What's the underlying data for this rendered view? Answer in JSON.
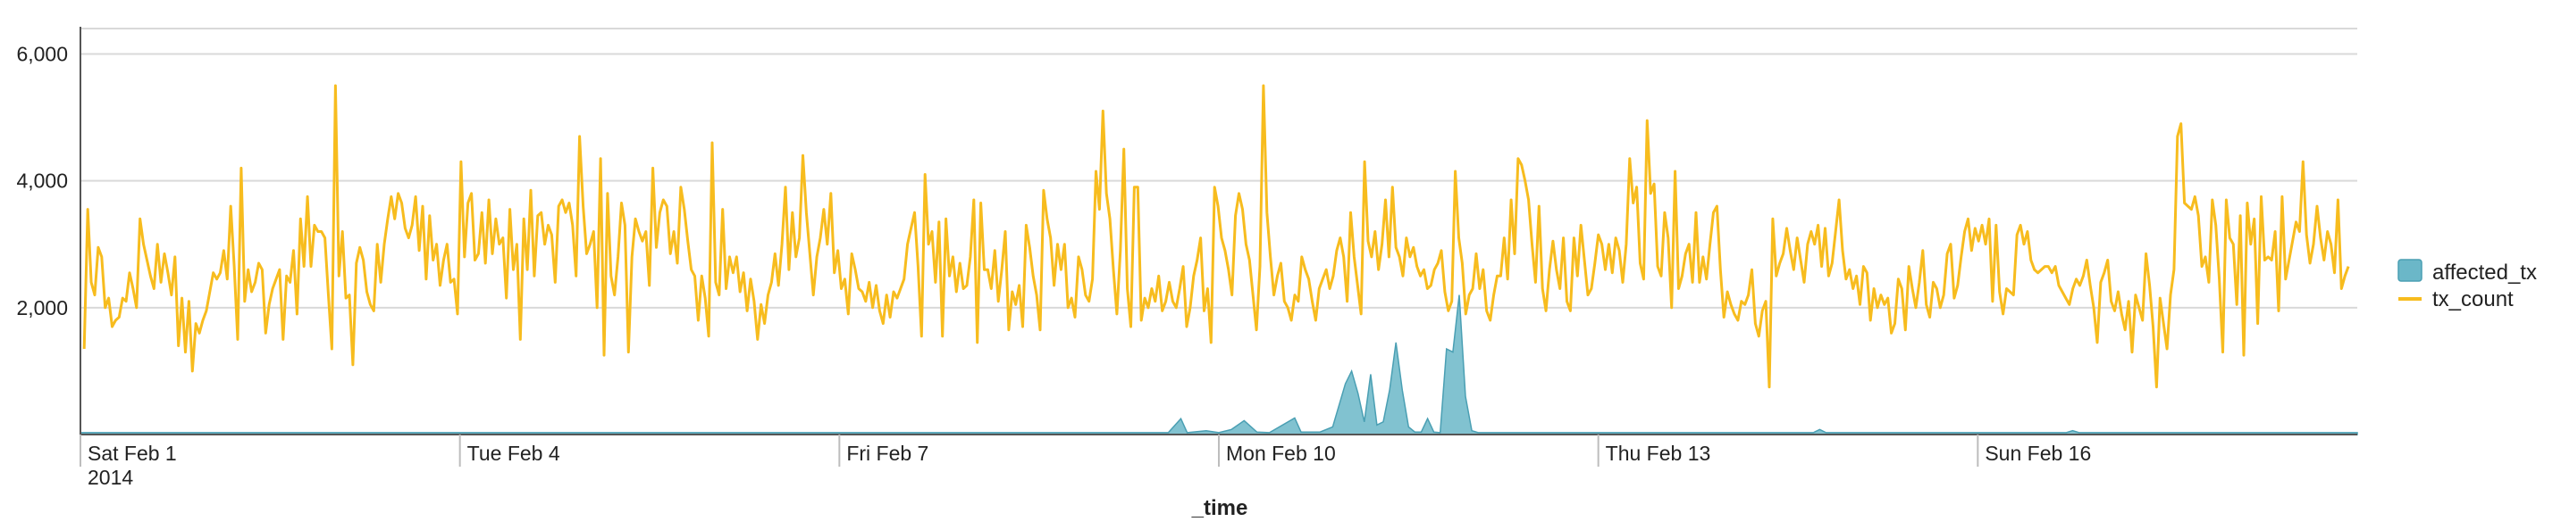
{
  "chart_data": {
    "type": "area+line",
    "xlabel": "_time",
    "ylabel": "",
    "ylim": [
      0,
      6400
    ],
    "grid": true,
    "legend_position": "right",
    "y_ticks": [
      {
        "value": 2000,
        "label": "2,000"
      },
      {
        "value": 4000,
        "label": "4,000"
      },
      {
        "value": 6000,
        "label": "6,000"
      }
    ],
    "x_range_days": [
      0,
      18
    ],
    "x_ticks": [
      {
        "day": 0,
        "label": "Sat Feb 1",
        "sublabel": "2014"
      },
      {
        "day": 3,
        "label": "Tue Feb 4",
        "sublabel": ""
      },
      {
        "day": 6,
        "label": "Fri Feb 7",
        "sublabel": ""
      },
      {
        "day": 9,
        "label": "Mon Feb 10",
        "sublabel": ""
      },
      {
        "day": 12,
        "label": "Thu Feb 13",
        "sublabel": ""
      },
      {
        "day": 15,
        "label": "Sun Feb 16",
        "sublabel": ""
      }
    ],
    "series": [
      {
        "name": "affected_tx",
        "style": "area",
        "color": "#6bb7c8",
        "points": [
          [
            0.0,
            30
          ],
          [
            8.6,
            30
          ],
          [
            8.7,
            250
          ],
          [
            8.75,
            30
          ],
          [
            8.9,
            60
          ],
          [
            9.0,
            30
          ],
          [
            9.1,
            80
          ],
          [
            9.2,
            220
          ],
          [
            9.3,
            40
          ],
          [
            9.4,
            30
          ],
          [
            9.6,
            260
          ],
          [
            9.65,
            40
          ],
          [
            9.8,
            40
          ],
          [
            9.9,
            120
          ],
          [
            10.0,
            800
          ],
          [
            10.05,
            1000
          ],
          [
            10.1,
            650
          ],
          [
            10.15,
            200
          ],
          [
            10.2,
            950
          ],
          [
            10.25,
            150
          ],
          [
            10.3,
            200
          ],
          [
            10.35,
            700
          ],
          [
            10.4,
            1450
          ],
          [
            10.45,
            700
          ],
          [
            10.5,
            120
          ],
          [
            10.55,
            40
          ],
          [
            10.6,
            40
          ],
          [
            10.65,
            250
          ],
          [
            10.7,
            40
          ],
          [
            10.75,
            30
          ],
          [
            10.8,
            1350
          ],
          [
            10.85,
            1300
          ],
          [
            10.9,
            2200
          ],
          [
            10.95,
            600
          ],
          [
            11.0,
            60
          ],
          [
            11.05,
            30
          ],
          [
            13.7,
            30
          ],
          [
            13.75,
            80
          ],
          [
            13.8,
            30
          ],
          [
            15.7,
            30
          ],
          [
            15.75,
            60
          ],
          [
            15.8,
            30
          ],
          [
            18.0,
            30
          ]
        ]
      },
      {
        "name": "tx_count",
        "style": "line",
        "color": "#f7bc1e",
        "values": [
          1350,
          3550,
          2400,
          2200,
          2950,
          2800,
          2000,
          2150,
          1700,
          1800,
          1850,
          2150,
          2100,
          2550,
          2300,
          2000,
          3400,
          3000,
          2750,
          2500,
          2300,
          3000,
          2400,
          2850,
          2550,
          2200,
          2800,
          1400,
          2150,
          1300,
          2100,
          1000,
          1750,
          1600,
          1800,
          1950,
          2250,
          2550,
          2450,
          2550,
          2900,
          2450,
          3600,
          2650,
          1500,
          4200,
          2100,
          2600,
          2250,
          2400,
          2700,
          2600,
          1600,
          2050,
          2300,
          2450,
          2600,
          1500,
          2500,
          2400,
          2900,
          1900,
          3400,
          2650,
          3750,
          2650,
          3300,
          3200,
          3200,
          3100,
          2200,
          1350,
          5500,
          2500,
          3200,
          2150,
          2200,
          1100,
          2700,
          2950,
          2750,
          2250,
          2050,
          1950,
          3000,
          2400,
          3000,
          3400,
          3750,
          3400,
          3800,
          3650,
          3250,
          3100,
          3300,
          3750,
          2900,
          3600,
          2450,
          3450,
          2750,
          3000,
          2350,
          2750,
          3000,
          2400,
          2450,
          1900,
          4300,
          2800,
          3650,
          3800,
          2750,
          2850,
          3500,
          2700,
          3700,
          2850,
          3400,
          3000,
          3100,
          2150,
          3550,
          2600,
          3000,
          1500,
          3400,
          2600,
          3850,
          2500,
          3450,
          3500,
          3000,
          3300,
          3150,
          2400,
          3600,
          3700,
          3500,
          3650,
          3300,
          2500,
          4700,
          3600,
          2850,
          3000,
          3200,
          2000,
          4350,
          1250,
          3800,
          2500,
          2200,
          2800,
          3650,
          3300,
          1300,
          2800,
          3400,
          3200,
          3050,
          3200,
          2350,
          4200,
          2950,
          3500,
          3700,
          3600,
          2850,
          3200,
          2700,
          3900,
          3550,
          3050,
          2600,
          2500,
          1800,
          2500,
          2150,
          1550,
          4600,
          2400,
          2200,
          3550,
          2300,
          2800,
          2550,
          2800,
          2250,
          2550,
          1950,
          2450,
          2100,
          1500,
          2050,
          1750,
          2200,
          2400,
          2850,
          2350,
          3000,
          3900,
          2600,
          3500,
          2800,
          3100,
          4400,
          3500,
          2850,
          2200,
          2800,
          3100,
          3550,
          3000,
          3800,
          2550,
          2900,
          2300,
          2450,
          1900,
          2850,
          2600,
          2300,
          2250,
          2100,
          2400,
          2000,
          2350,
          1950,
          1750,
          2200,
          1850,
          2250,
          2150,
          2300,
          2450,
          3000,
          3250,
          3500,
          2650,
          1550,
          4100,
          3000,
          3200,
          2400,
          3350,
          1550,
          3400,
          2500,
          2800,
          2250,
          2700,
          2300,
          2350,
          2800,
          3700,
          1450,
          3650,
          2600,
          2600,
          2300,
          2900,
          2100,
          2600,
          3200,
          1650,
          2250,
          2050,
          2350,
          1700,
          3300,
          2950,
          2500,
          2200,
          1650,
          3850,
          3400,
          3100,
          2350,
          3000,
          2600,
          3000,
          2000,
          2150,
          1850,
          2800,
          2600,
          2200,
          2100,
          2450,
          4150,
          3550,
          5100,
          3800,
          3400,
          2600,
          1900,
          2900,
          4500,
          2300,
          1700,
          3900,
          3900,
          1800,
          2150,
          2000,
          2300,
          2100,
          2500,
          1950,
          2100,
          2400,
          2100,
          2000,
          2300,
          2650,
          1700,
          2000,
          2500,
          2750,
          3100,
          1950,
          2300,
          1450,
          3900,
          3600,
          3100,
          2900,
          2600,
          2200,
          3450,
          3800,
          3550,
          3000,
          2750,
          2200,
          1650,
          2650,
          5500,
          3500,
          2800,
          2200,
          2500,
          2700,
          2100,
          2000,
          1800,
          2200,
          2100,
          2800,
          2600,
          2450,
          2100,
          1800,
          2300,
          2450,
          2600,
          2300,
          2500,
          2900,
          3100,
          2800,
          2100,
          3500,
          2800,
          2350,
          1900,
          4300,
          3050,
          2800,
          3200,
          2600,
          3000,
          3700,
          2800,
          3900,
          2950,
          2800,
          2500,
          3100,
          2800,
          2950,
          2650,
          2500,
          2600,
          2300,
          2350,
          2600,
          2700,
          2900,
          2250,
          1950,
          2100,
          4150,
          3100,
          2700,
          1900,
          2200,
          2300,
          2850,
          2300,
          2600,
          1950,
          1800,
          2200,
          2500,
          2500,
          3100,
          2450,
          3700,
          2850,
          4350,
          4250,
          4000,
          3700,
          3000,
          2400,
          3600,
          2300,
          1950,
          2600,
          3050,
          2600,
          2300,
          3100,
          2100,
          1950,
          3100,
          2500,
          3300,
          2750,
          2200,
          2300,
          2700,
          3150,
          3000,
          2600,
          3000,
          2550,
          3100,
          2900,
          2400,
          3000,
          4350,
          3650,
          3900,
          2700,
          2450,
          4950,
          3800,
          3950,
          2650,
          2500,
          3500,
          3100,
          2000,
          4150,
          2300,
          2500,
          2850,
          3000,
          2400,
          3500,
          2400,
          2800,
          2450,
          3000,
          3500,
          3600,
          2600,
          1850,
          2250,
          2050,
          1900,
          1800,
          2100,
          2050,
          2200,
          2600,
          1750,
          1550,
          1950,
          2100,
          750,
          3400,
          2500,
          2700,
          2850,
          3250,
          2900,
          2600,
          3100,
          2750,
          2400,
          3000,
          3200,
          3000,
          3300,
          2650,
          3250,
          2500,
          2700,
          3200,
          3700,
          2900,
          2450,
          2600,
          2300,
          2500,
          2050,
          2650,
          2550,
          1800,
          2300,
          2000,
          2200,
          2050,
          2150,
          1600,
          1750,
          2450,
          2300,
          1650,
          2650,
          2300,
          2000,
          2400,
          2900,
          2050,
          1850,
          2400,
          2300,
          2000,
          2200,
          2850,
          3000,
          2150,
          2350,
          2800,
          3200,
          3400,
          2900,
          3250,
          3050,
          3300,
          3000,
          3400,
          2100,
          3300,
          2250,
          1900,
          2300,
          2250,
          2200,
          3150,
          3300,
          3000,
          3200,
          2750,
          2600,
          2550,
          2600,
          2650,
          2650,
          2550,
          2650,
          2350,
          2250,
          2150,
          2050,
          2300,
          2450,
          2350,
          2500,
          2750,
          2350,
          2000,
          1450,
          2400,
          2550,
          2750,
          2100,
          1950,
          2250,
          1900,
          1650,
          2100,
          1300,
          2200,
          2000,
          1800,
          2850,
          2350,
          1700,
          750,
          2150,
          1750,
          1350,
          2200,
          2600,
          4700,
          4900,
          3650,
          3600,
          3550,
          3750,
          3450,
          2650,
          2800,
          2400,
          3700,
          3300,
          2450,
          1300,
          3700,
          3100,
          3000,
          2050,
          3450,
          1250,
          3650,
          3000,
          3400,
          1750,
          3750,
          2750,
          2800,
          2750,
          3200,
          1950,
          3750,
          2450,
          2750,
          3050,
          3350,
          3200,
          4300,
          3150,
          2700,
          3000,
          3600,
          3100,
          2750,
          3200,
          3000,
          2550,
          3700,
          2300,
          2500,
          2650
        ],
        "start_day": 0.03,
        "end_day": 17.93
      }
    ]
  }
}
